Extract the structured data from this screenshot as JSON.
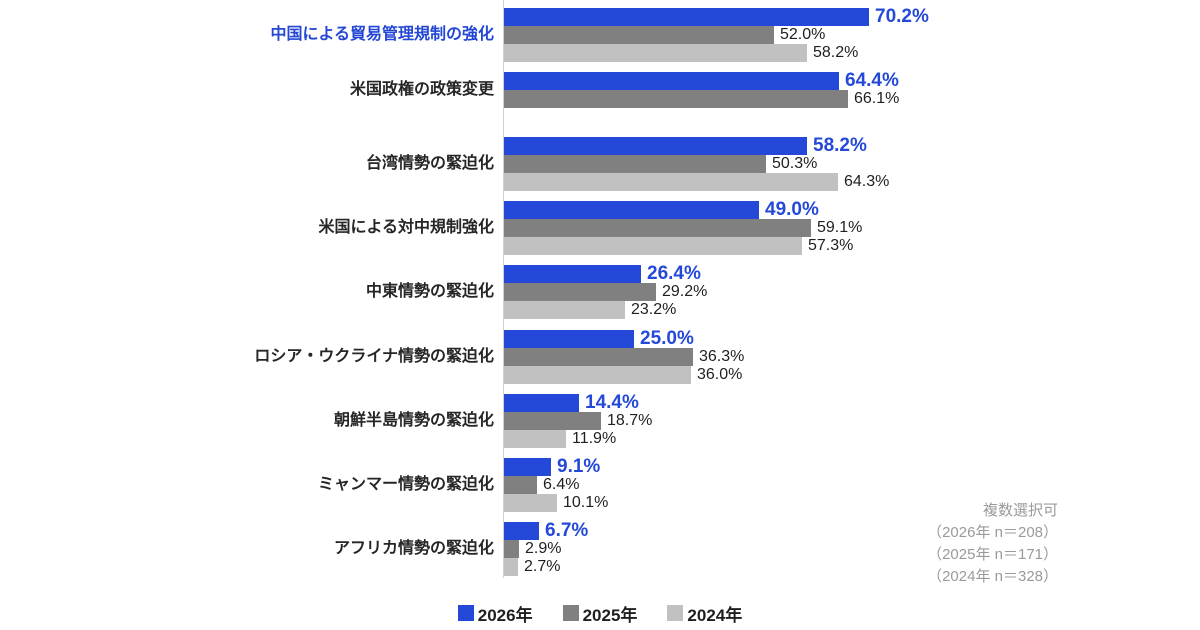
{
  "chart_data": {
    "type": "bar",
    "orientation": "horizontal",
    "title": "",
    "xlabel": "",
    "ylabel": "",
    "xlim": [
      0,
      100
    ],
    "grid": false,
    "legend_position": "bottom",
    "value_suffix": "%",
    "highlight_category_index": 0,
    "highlight_color": "#2347d4",
    "categories": [
      "中国による貿易管理規制の強化",
      "米国政権の政策変更",
      "台湾情勢の緊迫化",
      "米国による対中規制強化",
      "中東情勢の緊迫化",
      "ロシア・ウクライナ情勢の緊迫化",
      "朝鮮半島情勢の緊迫化",
      "ミャンマー情勢の緊迫化",
      "アフリカ情勢の緊迫化"
    ],
    "series": [
      {
        "name": "2026年",
        "color": "#2449d8",
        "values": [
          70.2,
          64.4,
          58.2,
          49.0,
          26.4,
          25.0,
          14.4,
          9.1,
          6.7
        ]
      },
      {
        "name": "2025年",
        "color": "#808080",
        "values": [
          52.0,
          66.1,
          50.3,
          59.1,
          29.2,
          36.3,
          18.7,
          6.4,
          2.9
        ]
      },
      {
        "name": "2024年",
        "color": "#c1c1c1",
        "values": [
          58.2,
          null,
          64.3,
          57.3,
          23.2,
          36.0,
          11.9,
          10.1,
          2.7
        ]
      }
    ]
  },
  "note": {
    "lines": [
      "複数選択可",
      "（2026年 n＝208）",
      "（2025年 n＝171）",
      "（2024年 n＝328）"
    ]
  },
  "legend": {
    "items": [
      {
        "label": "2026年"
      },
      {
        "label": "2025年"
      },
      {
        "label": "2024年"
      }
    ]
  }
}
